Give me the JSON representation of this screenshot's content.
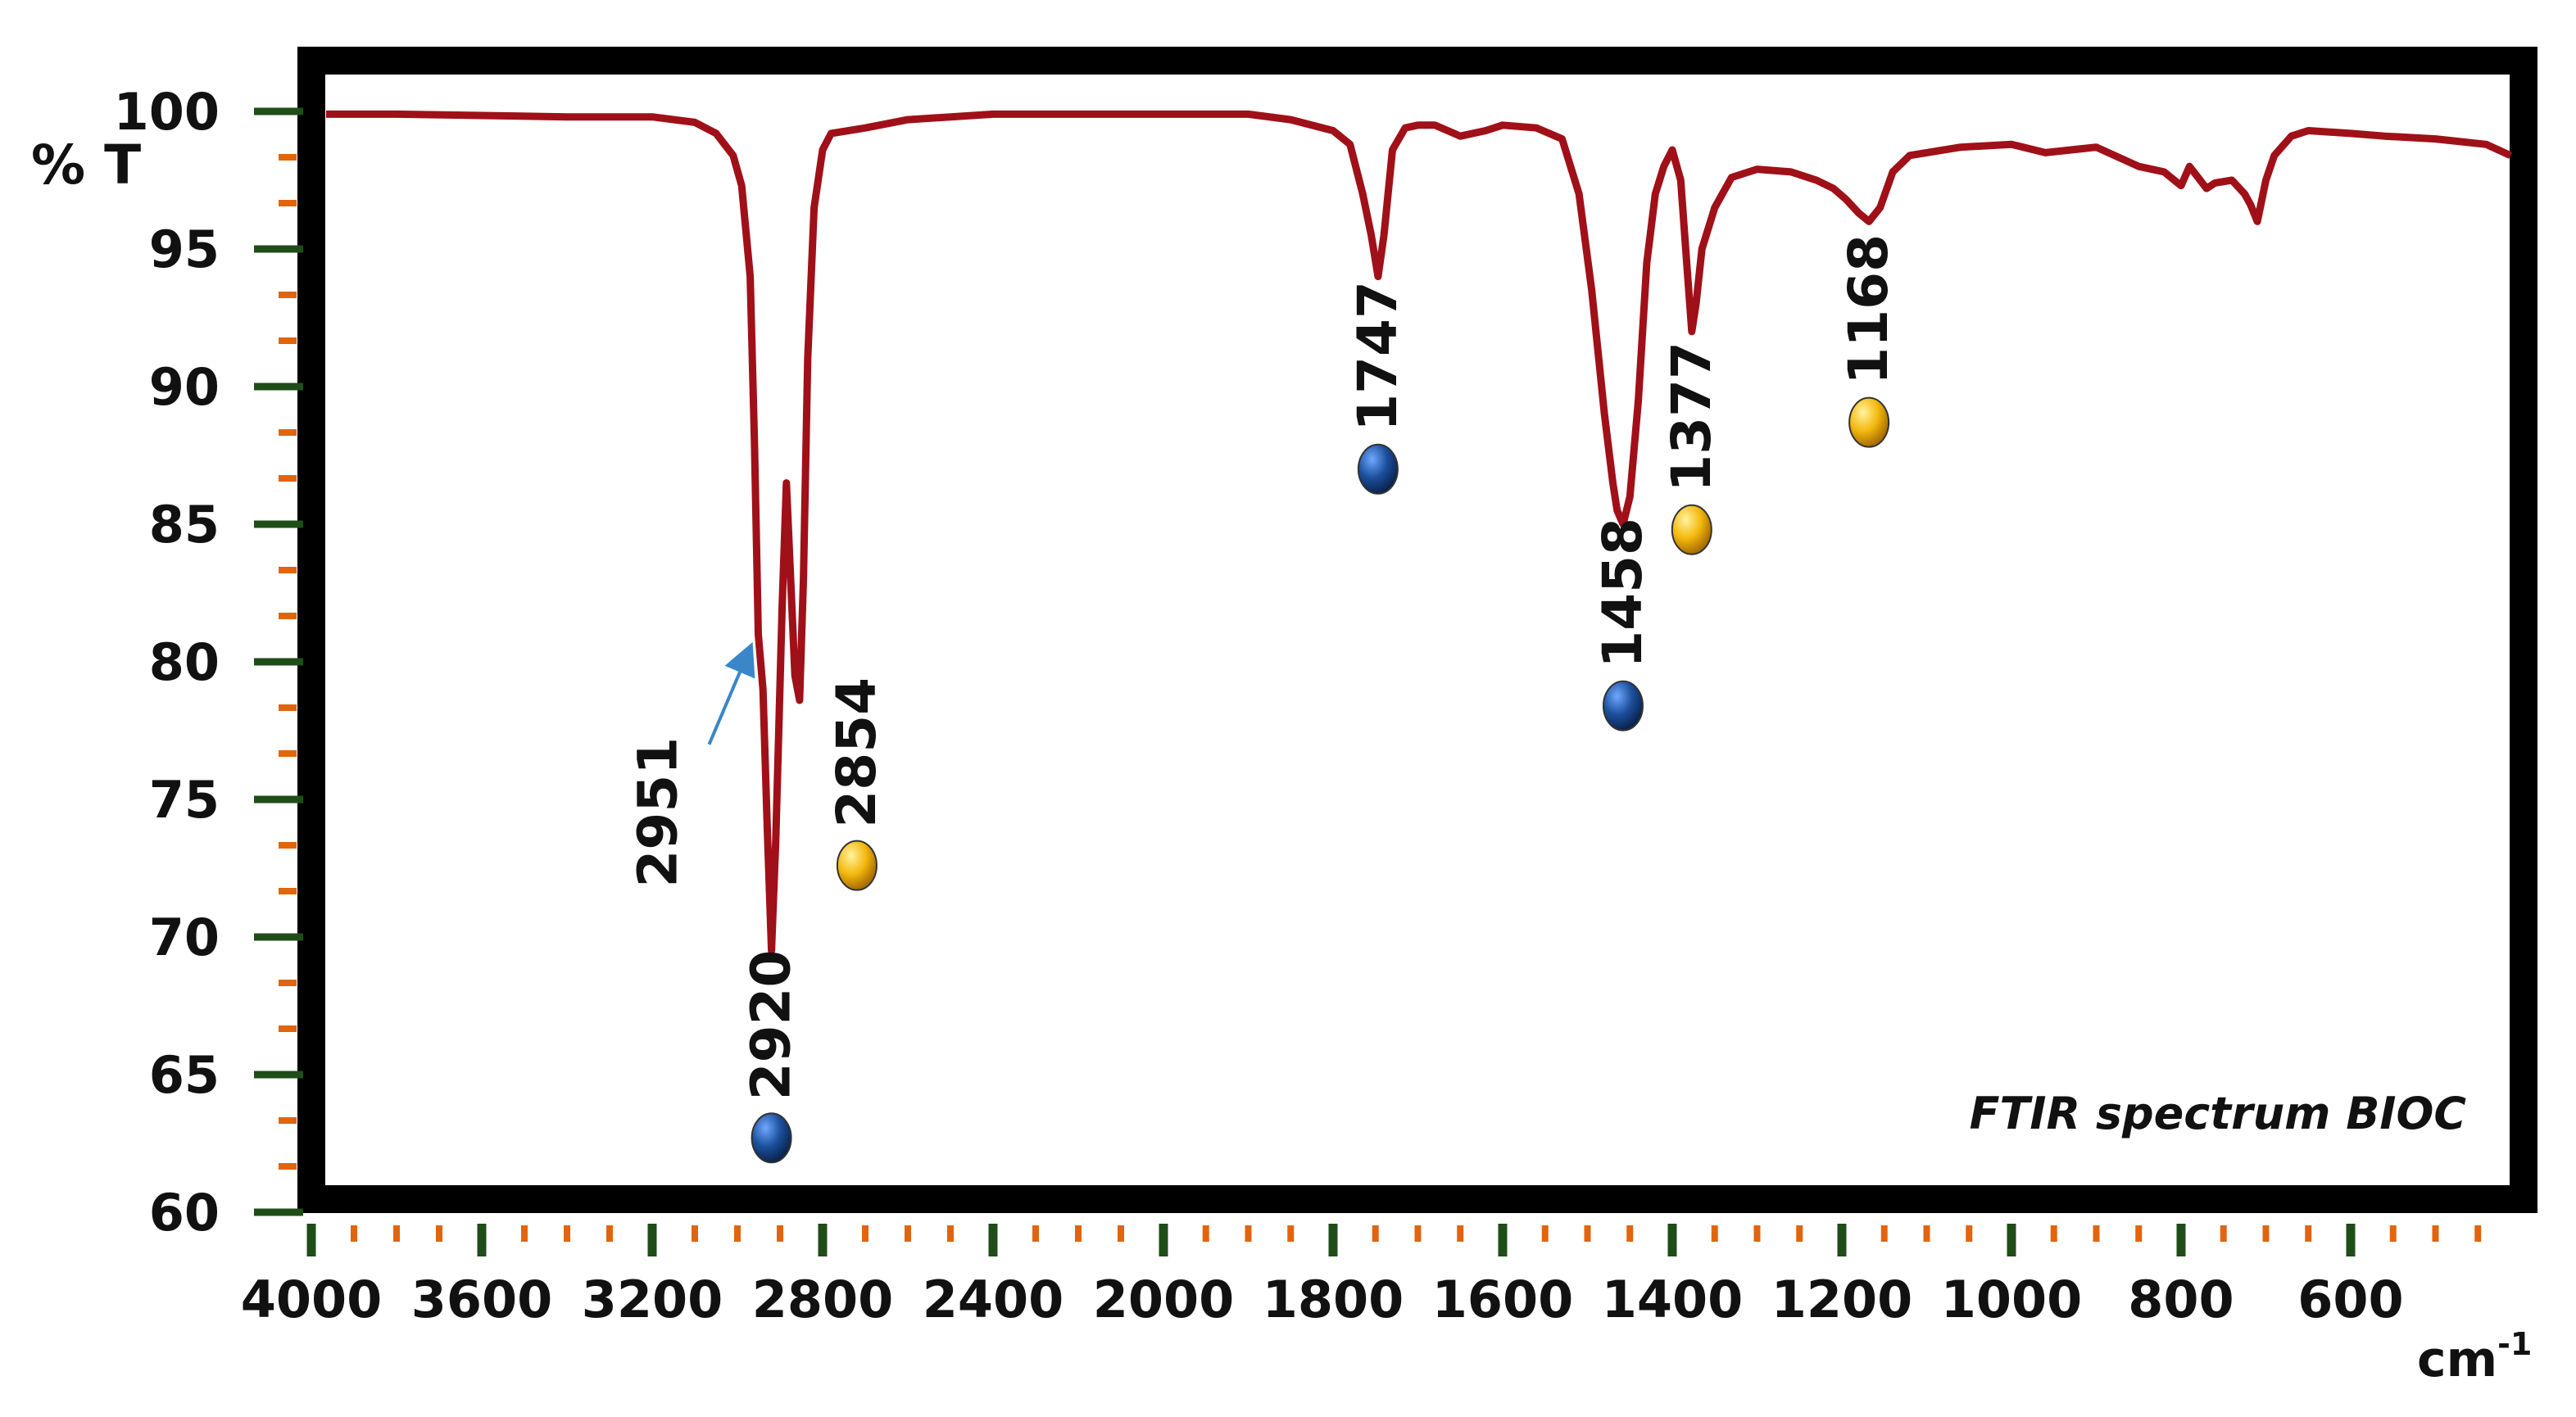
{
  "chart_data": {
    "type": "line",
    "title": "FTIR spectrum BIOC",
    "ylabel": "% T",
    "xlabel_base": "cm",
    "xlabel_exp": "-1",
    "xlim": [
      4000,
      400
    ],
    "ylim": [
      60,
      100
    ],
    "x_ticks": [
      4000,
      3600,
      3200,
      2800,
      2400,
      2000,
      1800,
      1600,
      1400,
      1200,
      1000,
      800,
      600
    ],
    "y_ticks": [
      100,
      95,
      90,
      85,
      80,
      75,
      70,
      65,
      60
    ],
    "line_color": "#a01018",
    "series": [
      {
        "name": "BIOC",
        "x": [
          4000,
          3800,
          3400,
          3200,
          3100,
          3050,
          3010,
          2990,
          2970,
          2960,
          2951,
          2940,
          2930,
          2920,
          2910,
          2895,
          2885,
          2875,
          2865,
          2854,
          2845,
          2835,
          2820,
          2800,
          2780,
          2700,
          2600,
          2400,
          2200,
          2000,
          1900,
          1850,
          1800,
          1780,
          1765,
          1755,
          1747,
          1740,
          1730,
          1715,
          1700,
          1680,
          1650,
          1620,
          1600,
          1560,
          1530,
          1510,
          1495,
          1480,
          1470,
          1465,
          1458,
          1450,
          1440,
          1430,
          1420,
          1410,
          1400,
          1390,
          1383,
          1377,
          1372,
          1365,
          1350,
          1330,
          1300,
          1260,
          1230,
          1210,
          1195,
          1180,
          1168,
          1155,
          1140,
          1120,
          1100,
          1060,
          1000,
          960,
          900,
          850,
          820,
          800,
          790,
          780,
          770,
          760,
          740,
          725,
          718,
          710,
          700,
          690,
          670,
          650,
          600,
          560,
          500,
          440,
          400
        ],
        "y": [
          99.9,
          99.9,
          99.8,
          99.8,
          99.6,
          99.2,
          98.4,
          97.3,
          94.0,
          88.0,
          81.0,
          79.0,
          74.0,
          69.5,
          73.5,
          82.0,
          86.5,
          83.0,
          79.5,
          78.6,
          83.0,
          91.0,
          96.5,
          98.6,
          99.2,
          99.4,
          99.7,
          99.9,
          99.9,
          99.9,
          99.9,
          99.7,
          99.3,
          98.8,
          97.0,
          95.5,
          94.0,
          95.5,
          98.6,
          99.4,
          99.5,
          99.5,
          99.1,
          99.3,
          99.5,
          99.4,
          99.0,
          97.0,
          93.5,
          89.0,
          86.5,
          85.5,
          85.0,
          86.0,
          89.5,
          94.5,
          97.0,
          98.0,
          98.6,
          97.5,
          94.5,
          92.0,
          93.0,
          95.0,
          96.5,
          97.6,
          97.9,
          97.8,
          97.5,
          97.2,
          96.8,
          96.3,
          96.0,
          96.5,
          97.8,
          98.4,
          98.5,
          98.7,
          98.8,
          98.5,
          98.7,
          98.0,
          97.8,
          97.3,
          98.0,
          97.6,
          97.2,
          97.4,
          97.5,
          97.0,
          96.6,
          96.0,
          97.5,
          98.4,
          99.1,
          99.3,
          99.2,
          99.1,
          99.0,
          98.8,
          98.4
        ]
      }
    ],
    "peaks": [
      {
        "label": "2920",
        "x": 2920,
        "marker_y": 62.7,
        "marker": "blue"
      },
      {
        "label": "2951",
        "x": 2951,
        "marker": "arrow"
      },
      {
        "label": "2854",
        "x": 2854,
        "marker_y": 72.6,
        "marker": "yellow"
      },
      {
        "label": "1747",
        "x": 1747,
        "marker_y": 87.0,
        "marker": "blue"
      },
      {
        "label": "1458",
        "x": 1458,
        "marker_y": 78.4,
        "marker": "blue"
      },
      {
        "label": "1377",
        "x": 1377,
        "marker_y": 84.8,
        "marker": "yellow"
      },
      {
        "label": "1168",
        "x": 1168,
        "marker_y": 88.7,
        "marker": "yellow"
      }
    ],
    "colors": {
      "frame": "#000000",
      "major_tick": "#1f4d18",
      "minor_tick": "#e0650e",
      "blue_marker": "#1b4f9c",
      "yellow_marker": "#f3b80c",
      "arrow": "#3a86c8"
    }
  }
}
